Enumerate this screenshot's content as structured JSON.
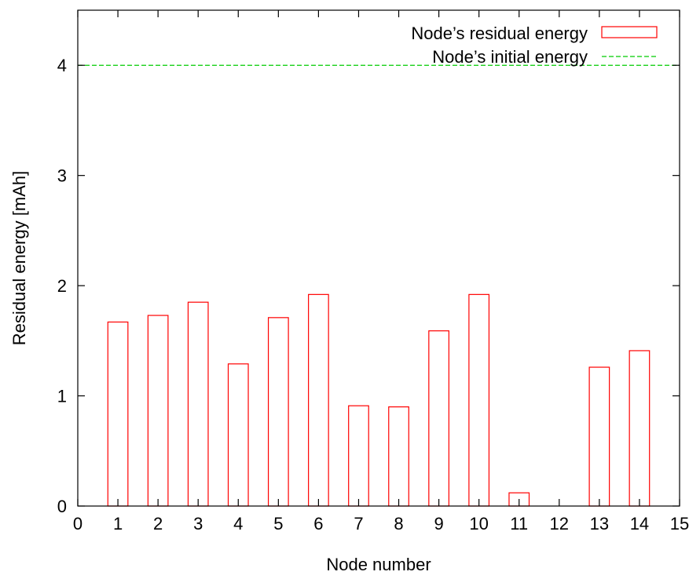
{
  "chart_data": {
    "type": "bar",
    "xlabel": "Node number",
    "ylabel": "Residual energy [mAh]",
    "xlim": [
      0,
      15
    ],
    "ylim": [
      0,
      4.5
    ],
    "x_ticks": [
      0,
      1,
      2,
      3,
      4,
      5,
      6,
      7,
      8,
      9,
      10,
      11,
      12,
      13,
      14,
      15
    ],
    "y_ticks": [
      0,
      1,
      2,
      3,
      4
    ],
    "grid": false,
    "legend_position": "top-right",
    "series": [
      {
        "name": "Node’s residual energy",
        "kind": "bar",
        "color": "#ff0000",
        "x": [
          1,
          2,
          3,
          4,
          5,
          6,
          7,
          8,
          9,
          10,
          11,
          12,
          13,
          14
        ],
        "values": [
          1.67,
          1.73,
          1.85,
          1.29,
          1.71,
          1.92,
          0.91,
          0.9,
          1.59,
          1.92,
          0.12,
          0,
          1.26,
          1.41
        ]
      },
      {
        "name": "Node’s initial energy",
        "kind": "reference-line",
        "style": "dashed",
        "color": "#00cc00",
        "value": 4
      }
    ]
  }
}
